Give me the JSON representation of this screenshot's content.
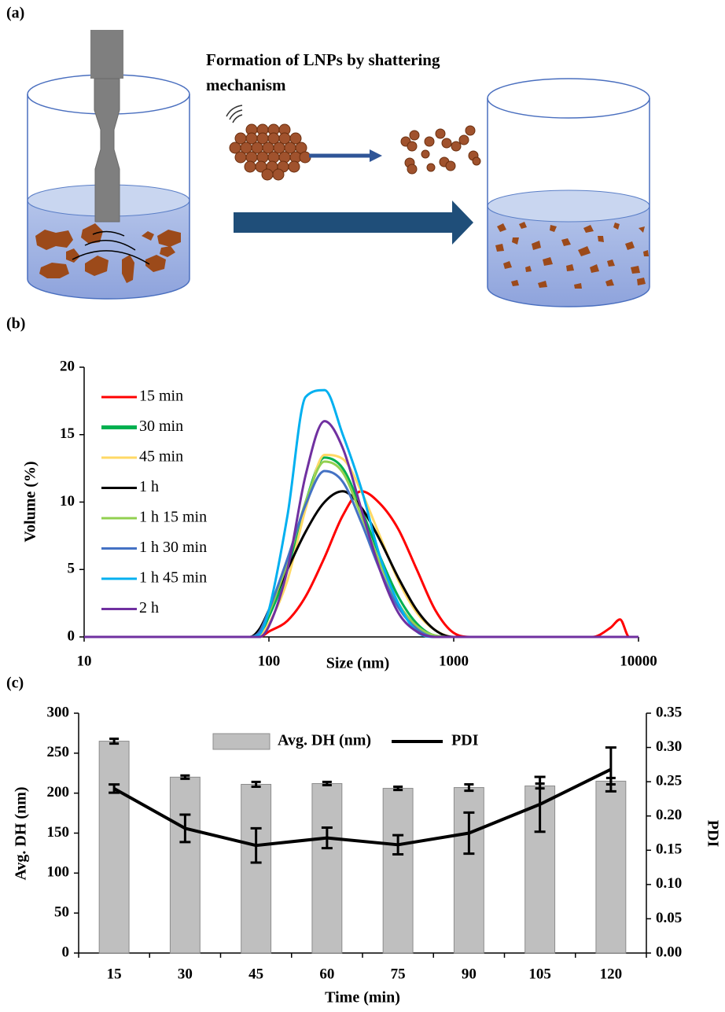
{
  "panel_a": {
    "panel_label": "(a)",
    "title_lines": [
      "Formation of LNPs by shattering",
      "mechanism"
    ]
  },
  "chart_data": [
    {
      "type": "line",
      "panel_label": "(b)",
      "x_label": "Size (nm)",
      "y_label": "Volume (%)",
      "x_scale": "log",
      "xlim": [
        10,
        10000
      ],
      "xticks": [
        10,
        100,
        1000,
        10000
      ],
      "ylim": [
        0,
        20
      ],
      "yticks": [
        0,
        5,
        10,
        15,
        20
      ],
      "grid": false,
      "legend_position": "upper left",
      "x": [
        10,
        79,
        89,
        100,
        126,
        158,
        200,
        251,
        316,
        398,
        501,
        631,
        794,
        1000,
        1259,
        5623,
        7079,
        7943,
        8913,
        10000
      ],
      "series": [
        {
          "name": "15 min",
          "color": "#ff0000",
          "values": [
            0,
            0,
            0,
            0.4,
            1.2,
            3.0,
            5.9,
            9.0,
            10.8,
            9.9,
            8.0,
            5.0,
            2.0,
            0.3,
            0,
            0,
            0.7,
            1.3,
            0,
            0
          ]
        },
        {
          "name": "30 min",
          "color": "#00b050",
          "values": [
            0,
            0,
            0.2,
            1.5,
            5.0,
            10.0,
            13.3,
            12.5,
            9.5,
            6.0,
            3.0,
            1.0,
            0.1,
            0,
            0,
            0,
            0,
            0,
            0,
            0
          ]
        },
        {
          "name": "45 min",
          "color": "#ffd966",
          "values": [
            0,
            0,
            0.1,
            1.0,
            4.2,
            9.5,
            13.5,
            13.2,
            10.8,
            7.5,
            4.2,
            1.8,
            0.5,
            0,
            0,
            0,
            0,
            0,
            0,
            0
          ]
        },
        {
          "name": "1 h",
          "color": "#000000",
          "values": [
            0,
            0,
            0.6,
            2.0,
            5.0,
            7.8,
            10.0,
            10.8,
            9.6,
            7.2,
            4.4,
            2.0,
            0.5,
            0,
            0,
            0,
            0,
            0,
            0,
            0
          ]
        },
        {
          "name": "1 h 15 min",
          "color": "#92d050",
          "values": [
            0,
            0,
            0.3,
            1.8,
            5.5,
            10.0,
            13.0,
            12.2,
            9.0,
            5.5,
            2.5,
            0.8,
            0.1,
            0,
            0,
            0,
            0,
            0,
            0,
            0
          ]
        },
        {
          "name": "1 h 30 min",
          "color": "#4472c4",
          "values": [
            0,
            0,
            0.4,
            2.0,
            5.8,
            9.8,
            12.3,
            11.5,
            8.5,
            5.0,
            2.2,
            0.6,
            0,
            0,
            0,
            0,
            0,
            0,
            0,
            0
          ]
        },
        {
          "name": "1 h 45 min",
          "color": "#00b0f0",
          "values": [
            0,
            0,
            0.2,
            2.0,
            9.0,
            17.8,
            18.3,
            15.0,
            11.0,
            6.0,
            2.5,
            0.4,
            0,
            0,
            0,
            0,
            0,
            0,
            0,
            0
          ]
        },
        {
          "name": "2 h",
          "color": "#7030a0",
          "values": [
            0,
            0,
            0,
            0.8,
            5.0,
            12.0,
            16.0,
            14.0,
            9.5,
            5.0,
            1.8,
            0.4,
            0,
            0,
            0,
            0,
            0,
            0,
            0,
            0
          ]
        }
      ]
    },
    {
      "type": "bar",
      "panel_label": "(c)",
      "x_label": "Time (min)",
      "y_label": "Avg. DH (nm)",
      "y2_label": "PDI",
      "categories": [
        "15",
        "30",
        "45",
        "60",
        "75",
        "90",
        "105",
        "120"
      ],
      "ylim": [
        0,
        300
      ],
      "yticks": [
        0,
        50,
        100,
        150,
        200,
        250,
        300
      ],
      "y2lim": [
        0,
        0.35
      ],
      "y2ticks": [
        {
          "value": 0,
          "label": "0.00"
        },
        0.05,
        {
          "value": 0.1,
          "label": "0.10"
        },
        0.15,
        {
          "value": 0.2,
          "label": "0.20"
        },
        0.25,
        {
          "value": 0.3,
          "label": "0.30"
        },
        0.35
      ],
      "legend_position": "upper center",
      "series": [
        {
          "name": "Avg. DH (nm)",
          "type": "bar",
          "color": "#bfbfbf",
          "values": [
            265,
            220,
            211,
            212,
            206,
            207,
            209,
            215
          ],
          "errors": [
            3,
            2,
            3,
            2,
            2,
            4,
            3,
            4
          ]
        },
        {
          "name": "PDI",
          "type": "line",
          "axis": "y2",
          "color": "#000000",
          "values": [
            0.24,
            0.182,
            0.157,
            0.168,
            0.158,
            0.175,
            0.217,
            0.268
          ],
          "errors": [
            0.006,
            0.02,
            0.025,
            0.015,
            0.014,
            0.03,
            0.04,
            0.032
          ]
        }
      ]
    }
  ]
}
